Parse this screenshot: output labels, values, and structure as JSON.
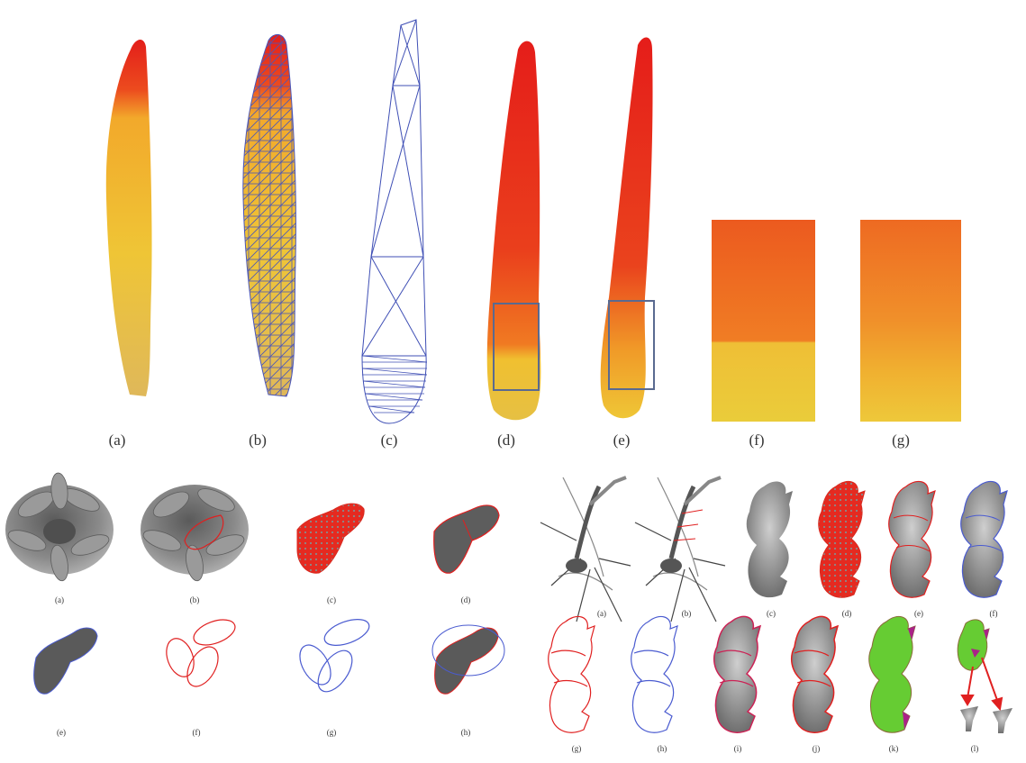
{
  "top_row": {
    "panel_labels": [
      "(a)",
      "(b)",
      "(c)",
      "(d)",
      "(e)",
      "(f)",
      "(g)"
    ]
  },
  "bottom_left": {
    "row1_labels": [
      "(a)",
      "(b)",
      "(c)",
      "(d)"
    ],
    "row2_labels": [
      "(e)",
      "(f)",
      "(g)",
      "(h)"
    ]
  },
  "bottom_right": {
    "row1_labels": [
      "(a)",
      "(b)",
      "(c)",
      "(d)",
      "(e)",
      "(f)"
    ],
    "row2_labels": [
      "(g)",
      "(h)",
      "(i)",
      "(j)",
      "(k)",
      "(l)"
    ]
  },
  "colors": {
    "petal_red": "#e8231a",
    "petal_orange": "#f07a22",
    "petal_yellow": "#f0c033",
    "mesh_blue": "#3a4db0",
    "outline_red": "#e02020",
    "outline_blue": "#4a5bd0",
    "fill_green": "#66cc33",
    "fill_magenta": "#aa2288",
    "gray": "#7a7a7a"
  }
}
